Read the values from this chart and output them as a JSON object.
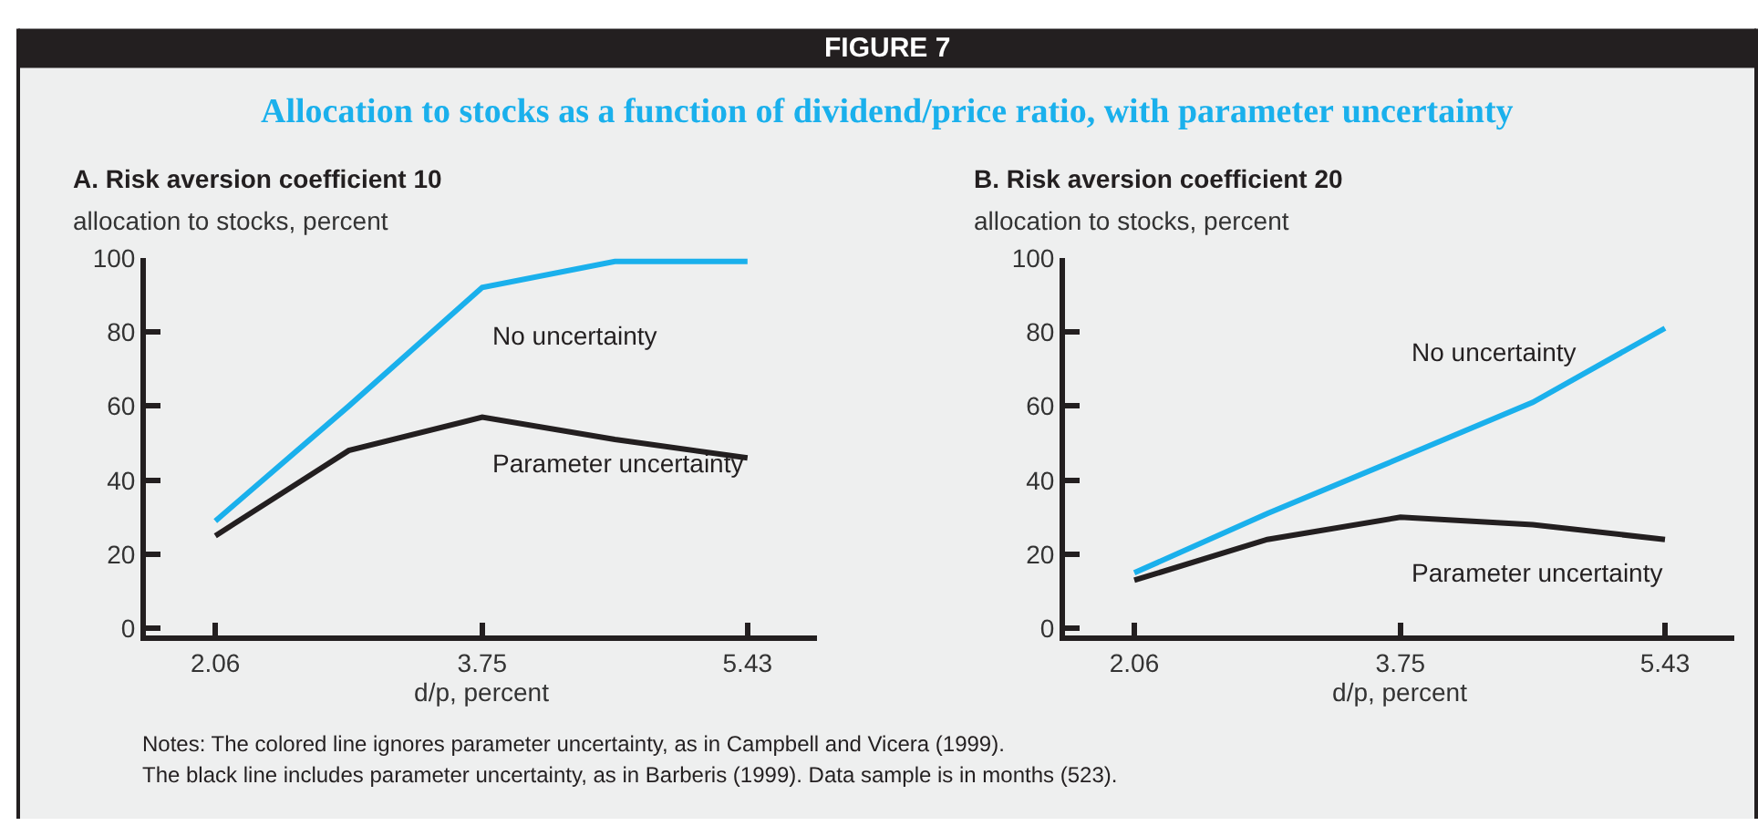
{
  "chart_data": [
    {
      "type": "line",
      "title": "A. Risk aversion coefficient 10",
      "ylabel": "allocation to stocks, percent",
      "xlabel": "d/p, percent",
      "annotations": [
        "FIGURE 7",
        "Allocation to stocks as a function of dividend/price ratio, with parameter uncertainty"
      ],
      "x": [
        2.06,
        2.905,
        3.75,
        4.59,
        5.43
      ],
      "series": [
        {
          "name": "No uncertainty",
          "color": "#1ab0ec",
          "values": [
            29,
            60,
            92,
            99,
            99
          ]
        },
        {
          "name": "Parameter uncertainty",
          "color": "#231f20",
          "values": [
            25,
            48,
            57,
            51,
            46
          ]
        }
      ],
      "xlim": [
        1.62,
        5.87
      ],
      "xticks": [
        2.06,
        3.75,
        5.43
      ],
      "ylim": [
        -2,
        100
      ],
      "yticks": [
        0,
        20,
        40,
        60,
        80,
        100
      ],
      "grid": false,
      "marker": "none",
      "line_style": "solid"
    },
    {
      "type": "line",
      "title": "B. Risk aversion coefficient 20",
      "ylabel": "allocation to stocks, percent",
      "xlabel": "d/p, percent",
      "annotations": [
        "Notes: The colored line ignores parameter uncertainty, as in Campbell and Vicera (1999).",
        "The black line includes parameter uncertainty, as in Barberis (1999). Data sample is in months (523)."
      ],
      "x": [
        2.06,
        2.905,
        3.75,
        4.59,
        5.43
      ],
      "series": [
        {
          "name": "No uncertainty",
          "color": "#1ab0ec",
          "values": [
            15,
            31,
            46,
            61,
            81
          ]
        },
        {
          "name": "Parameter uncertainty",
          "color": "#231f20",
          "values": [
            13,
            24,
            30,
            28,
            24
          ]
        }
      ],
      "xlim": [
        1.62,
        5.87
      ],
      "xticks": [
        2.06,
        3.75,
        5.43
      ],
      "ylim": [
        -2,
        100
      ],
      "yticks": [
        0,
        20,
        40,
        60,
        80,
        100
      ],
      "grid": false,
      "marker": "none",
      "line_style": "solid"
    }
  ]
}
